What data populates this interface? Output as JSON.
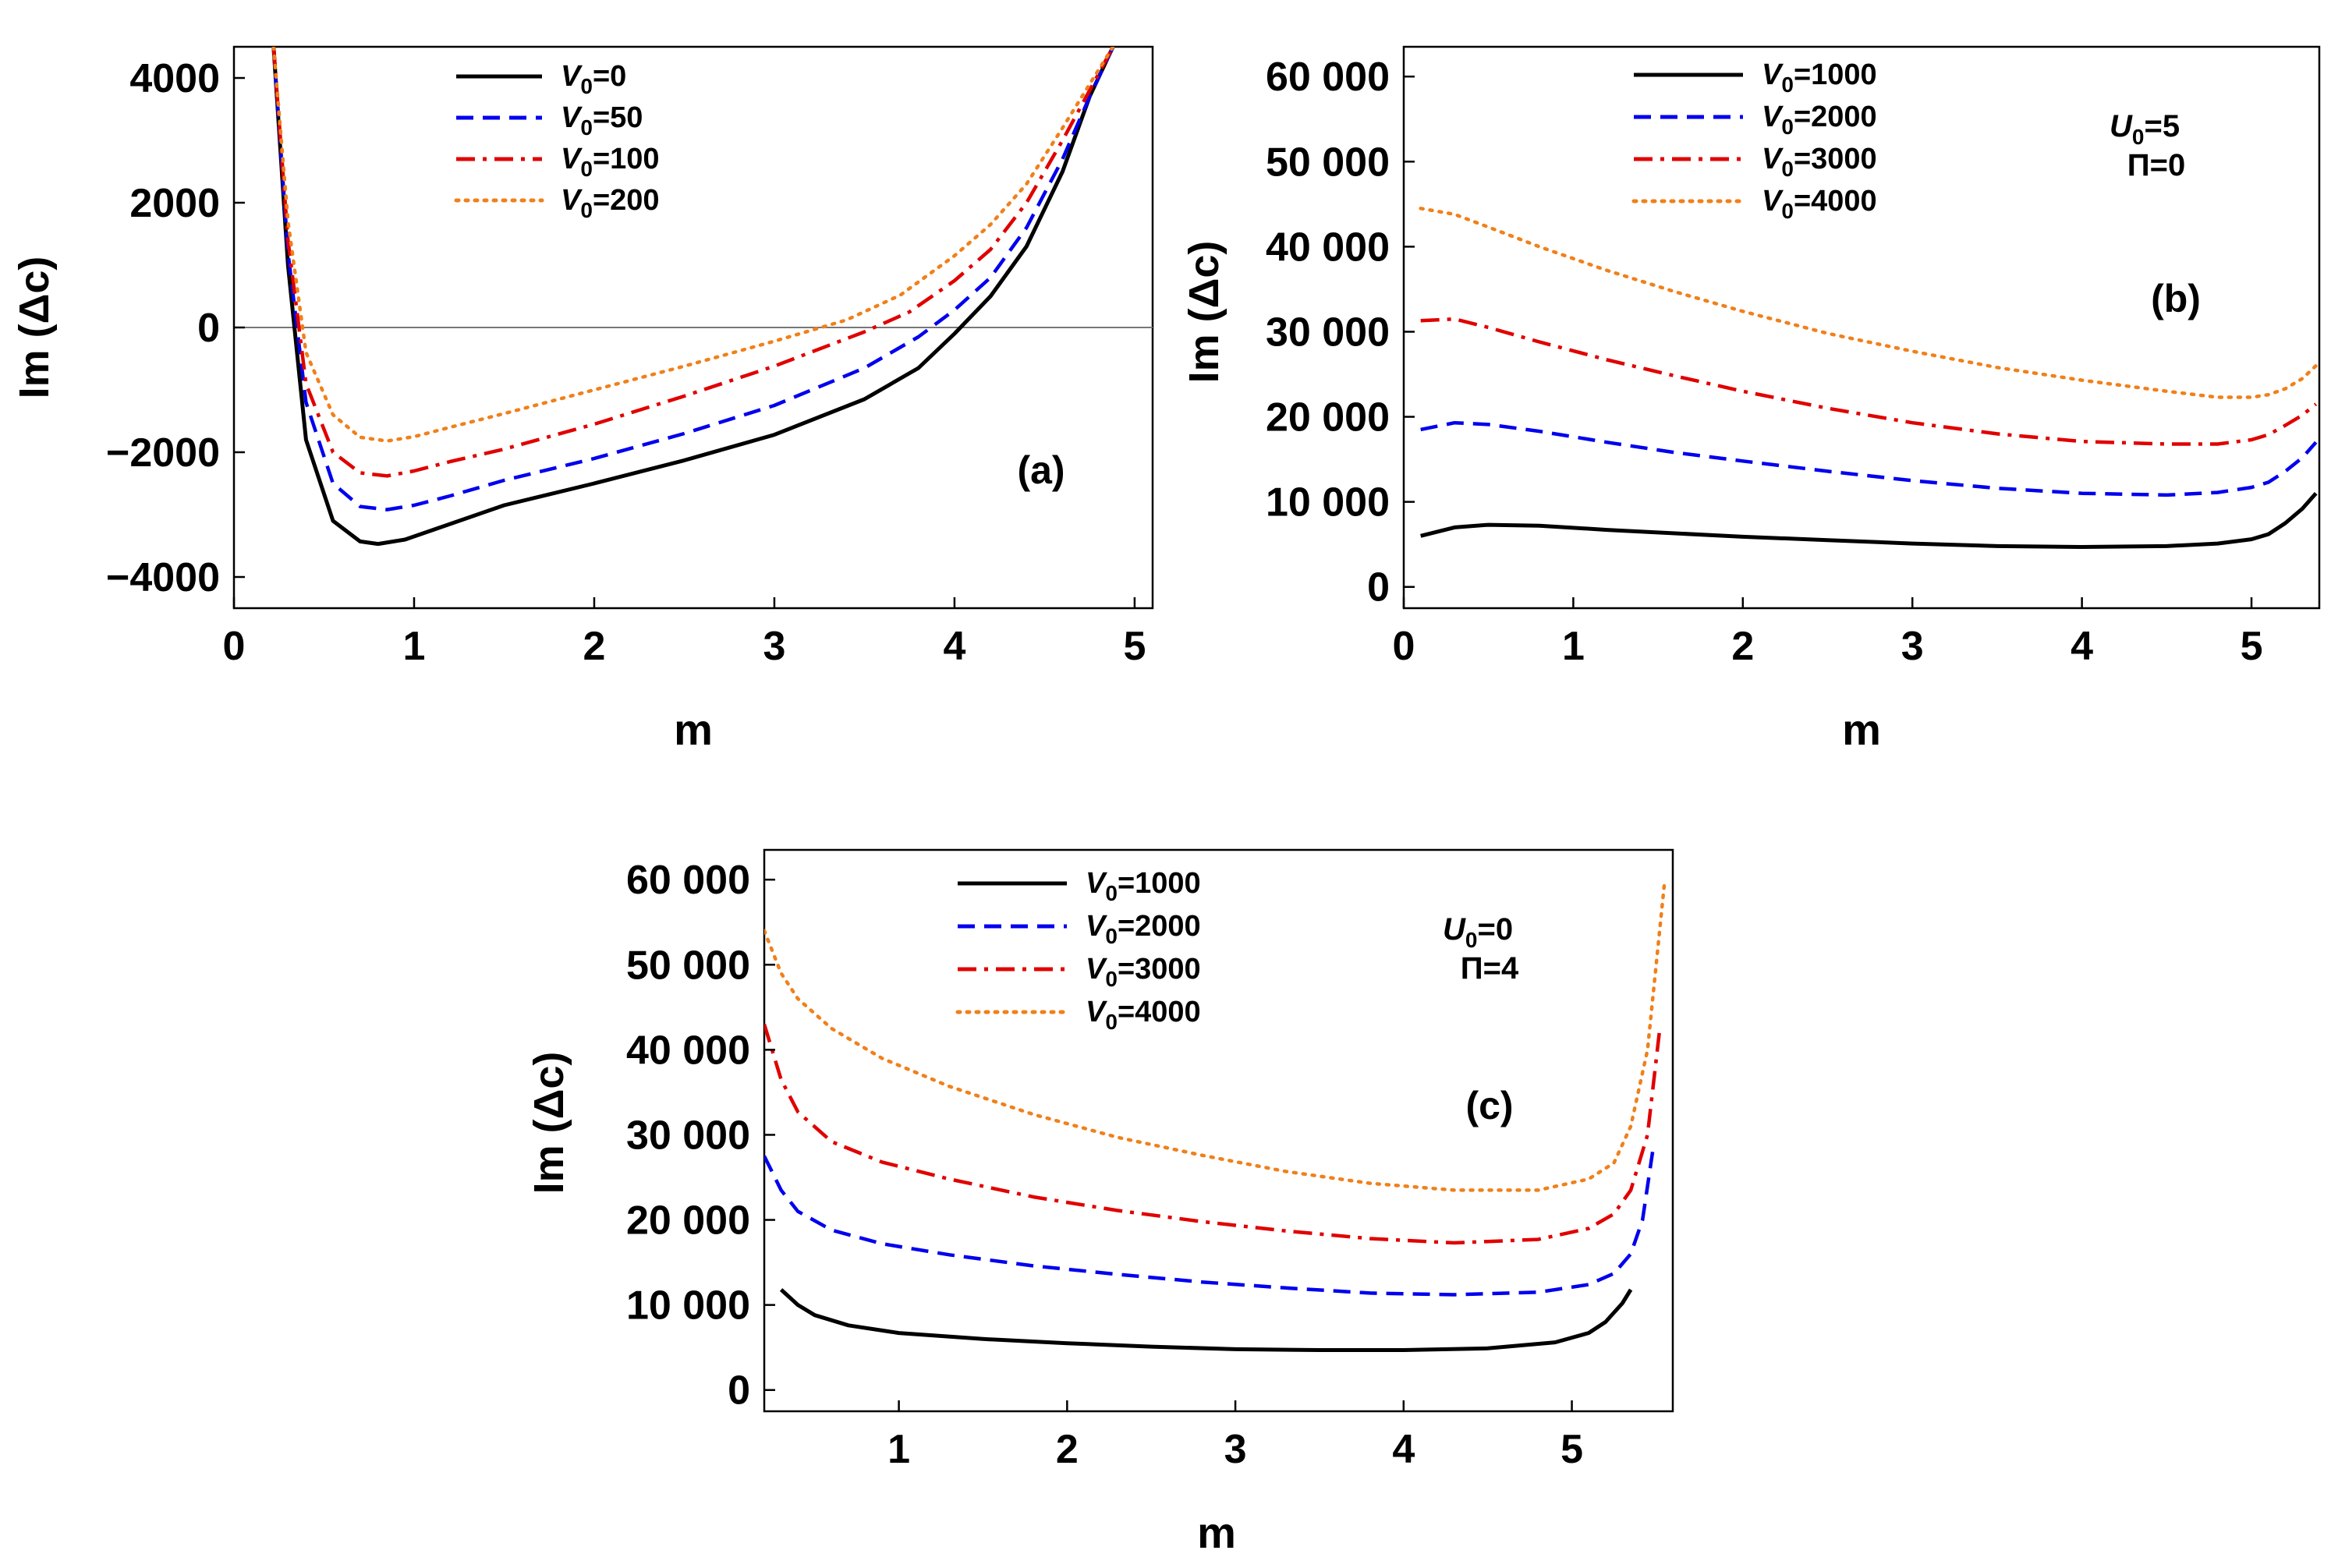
{
  "colors": {
    "s0": "#000000",
    "s1": "#0000ee",
    "s2": "#e00000",
    "s3": "#f0801a"
  },
  "chart_data": [
    {
      "id": "a",
      "type": "line",
      "panel_label": "(a)",
      "xlabel": "m",
      "ylabel": "Im (Δc)",
      "xlim": [
        0,
        5.1
      ],
      "ylim": [
        -4500,
        4500
      ],
      "xticks": [
        0,
        1,
        2,
        3,
        4,
        5
      ],
      "xtick_labels": [
        "0",
        "1",
        "2",
        "3",
        "4",
        "5"
      ],
      "yticks": [
        -4000,
        -2000,
        0,
        2000,
        4000
      ],
      "ytick_labels": [
        "−4000",
        "−2000",
        "0",
        "2000",
        "4000"
      ],
      "zero_line": true,
      "legend_position": "top-center",
      "series": [
        {
          "name": "V0=0",
          "v0": "0",
          "style": "solid",
          "x": [
            0.22,
            0.3,
            0.4,
            0.55,
            0.7,
            0.8,
            0.95,
            1.2,
            1.5,
            2.0,
            2.5,
            3.0,
            3.5,
            3.8,
            4.0,
            4.2,
            4.4,
            4.6,
            4.75,
            4.88
          ],
          "y": [
            4500,
            1000,
            -1800,
            -3100,
            -3430,
            -3470,
            -3400,
            -3150,
            -2850,
            -2500,
            -2130,
            -1720,
            -1150,
            -650,
            -100,
            500,
            1300,
            2500,
            3700,
            4500
          ]
        },
        {
          "name": "V0=50",
          "v0": "50",
          "style": "dashed",
          "x": [
            0.22,
            0.3,
            0.4,
            0.55,
            0.7,
            0.85,
            1.0,
            1.2,
            1.5,
            2.0,
            2.5,
            3.0,
            3.5,
            3.8,
            4.0,
            4.2,
            4.4,
            4.6,
            4.75,
            4.88
          ],
          "y": [
            4500,
            1200,
            -1200,
            -2500,
            -2870,
            -2920,
            -2850,
            -2700,
            -2450,
            -2100,
            -1700,
            -1250,
            -650,
            -150,
            280,
            800,
            1600,
            2700,
            3700,
            4500
          ]
        },
        {
          "name": "V0=100",
          "v0": "100",
          "style": "dashdot",
          "x": [
            0.22,
            0.3,
            0.4,
            0.55,
            0.7,
            0.85,
            1.0,
            1.2,
            1.5,
            2.0,
            2.5,
            3.0,
            3.5,
            3.75,
            4.0,
            4.2,
            4.4,
            4.6,
            4.75,
            4.88
          ],
          "y": [
            4500,
            1400,
            -900,
            -2000,
            -2330,
            -2380,
            -2300,
            -2150,
            -1950,
            -1550,
            -1100,
            -620,
            -70,
            250,
            750,
            1250,
            2000,
            3000,
            3800,
            4500
          ]
        },
        {
          "name": "V0=200",
          "v0": "200",
          "style": "dotted",
          "x": [
            0.22,
            0.3,
            0.4,
            0.55,
            0.7,
            0.85,
            1.0,
            1.2,
            1.5,
            2.0,
            2.5,
            3.0,
            3.4,
            3.7,
            4.0,
            4.2,
            4.4,
            4.6,
            4.75,
            4.88
          ],
          "y": [
            4500,
            1700,
            -400,
            -1400,
            -1760,
            -1820,
            -1750,
            -1600,
            -1380,
            -1000,
            -620,
            -220,
            120,
            520,
            1150,
            1650,
            2300,
            3200,
            3900,
            4500
          ]
        }
      ]
    },
    {
      "id": "b",
      "type": "line",
      "panel_label": "(b)",
      "xlabel": "m",
      "ylabel": "Im (Δc)",
      "xlim": [
        0,
        5.4
      ],
      "ylim": [
        -2500,
        63500
      ],
      "xticks": [
        0,
        1,
        2,
        3,
        4,
        5
      ],
      "xtick_labels": [
        "0",
        "1",
        "2",
        "3",
        "4",
        "5"
      ],
      "yticks": [
        0,
        10000,
        20000,
        30000,
        40000,
        50000,
        60000
      ],
      "ytick_labels": [
        "0",
        "10 000",
        "20 000",
        "30 000",
        "40 000",
        "50 000",
        "60 000"
      ],
      "zero_line": false,
      "legend_position": "top-left",
      "annotations": [
        "U0=5",
        "Π=0"
      ],
      "series": [
        {
          "name": "V0=1000",
          "v0": "1000",
          "style": "solid",
          "x": [
            0.1,
            0.3,
            0.5,
            0.8,
            1.2,
            1.6,
            2.0,
            2.5,
            3.0,
            3.5,
            4.0,
            4.5,
            4.8,
            5.0,
            5.1,
            5.2,
            5.3,
            5.38
          ],
          "y": [
            6000,
            7000,
            7300,
            7200,
            6700,
            6300,
            5900,
            5500,
            5100,
            4800,
            4700,
            4800,
            5100,
            5600,
            6200,
            7500,
            9200,
            11000
          ]
        },
        {
          "name": "V0=2000",
          "v0": "2000",
          "style": "dashed",
          "x": [
            0.1,
            0.3,
            0.5,
            0.8,
            1.2,
            1.6,
            2.0,
            2.5,
            3.0,
            3.5,
            4.0,
            4.5,
            4.8,
            5.0,
            5.1,
            5.2,
            5.3,
            5.38
          ],
          "y": [
            18500,
            19300,
            19100,
            18300,
            17000,
            15800,
            14800,
            13600,
            12500,
            11600,
            11000,
            10800,
            11100,
            11700,
            12300,
            13600,
            15200,
            17000
          ]
        },
        {
          "name": "V0=3000",
          "v0": "3000",
          "style": "dashdot",
          "x": [
            0.1,
            0.3,
            0.5,
            0.8,
            1.2,
            1.6,
            2.0,
            2.5,
            3.0,
            3.5,
            4.0,
            4.5,
            4.8,
            5.0,
            5.1,
            5.2,
            5.3,
            5.38
          ],
          "y": [
            31300,
            31500,
            30500,
            28800,
            26700,
            24800,
            23000,
            21000,
            19300,
            18000,
            17100,
            16800,
            16800,
            17300,
            17900,
            19000,
            20200,
            21500
          ]
        },
        {
          "name": "V0=4000",
          "v0": "4000",
          "style": "dotted",
          "x": [
            0.1,
            0.3,
            0.5,
            0.8,
            1.2,
            1.6,
            2.0,
            2.5,
            3.0,
            3.5,
            4.0,
            4.5,
            4.8,
            5.0,
            5.1,
            5.2,
            5.3,
            5.38
          ],
          "y": [
            44500,
            43800,
            42300,
            40000,
            37200,
            34700,
            32400,
            29800,
            27700,
            25800,
            24300,
            23000,
            22300,
            22300,
            22600,
            23300,
            24500,
            26000
          ]
        }
      ]
    },
    {
      "id": "c",
      "type": "line",
      "panel_label": "(c)",
      "xlabel": "m",
      "ylabel": "Im (Δc)",
      "xlim": [
        0.2,
        5.6
      ],
      "ylim": [
        -2500,
        63500
      ],
      "xticks": [
        1,
        2,
        3,
        4,
        5
      ],
      "xtick_labels": [
        "1",
        "2",
        "3",
        "4",
        "5"
      ],
      "yticks": [
        0,
        10000,
        20000,
        30000,
        40000,
        50000,
        60000
      ],
      "ytick_labels": [
        "0",
        "10 000",
        "20 000",
        "30 000",
        "40 000",
        "50 000",
        "60 000"
      ],
      "zero_line": false,
      "legend_position": "top-left",
      "annotations": [
        "U0=0",
        "Π=4"
      ],
      "series": [
        {
          "name": "V0=1000",
          "v0": "1000",
          "style": "solid",
          "x": [
            0.3,
            0.4,
            0.5,
            0.7,
            1.0,
            1.5,
            2.0,
            2.5,
            3.0,
            3.5,
            4.0,
            4.5,
            4.9,
            5.1,
            5.2,
            5.3,
            5.35
          ],
          "y": [
            11800,
            10000,
            8800,
            7600,
            6700,
            6000,
            5500,
            5100,
            4800,
            4700,
            4700,
            4900,
            5600,
            6700,
            8000,
            10200,
            11800
          ]
        },
        {
          "name": "V0=2000",
          "v0": "2000",
          "style": "dashed",
          "x": [
            0.2,
            0.3,
            0.4,
            0.6,
            0.9,
            1.3,
            1.8,
            2.3,
            2.8,
            3.3,
            3.8,
            4.3,
            4.8,
            5.1,
            5.25,
            5.35,
            5.42,
            5.48
          ],
          "y": [
            27500,
            23500,
            21000,
            18800,
            17200,
            15900,
            14600,
            13600,
            12700,
            12000,
            11400,
            11200,
            11500,
            12400,
            13700,
            16000,
            20000,
            28000
          ]
        },
        {
          "name": "V0=3000",
          "v0": "3000",
          "style": "dashdot",
          "x": [
            0.2,
            0.3,
            0.4,
            0.6,
            0.9,
            1.3,
            1.8,
            2.3,
            2.8,
            3.3,
            3.8,
            4.3,
            4.8,
            5.1,
            5.25,
            5.35,
            5.45,
            5.52
          ],
          "y": [
            43000,
            36500,
            32700,
            29200,
            26800,
            24800,
            22700,
            21100,
            19800,
            18700,
            17800,
            17300,
            17700,
            19000,
            20700,
            23500,
            30000,
            42000
          ]
        },
        {
          "name": "V0=4000",
          "v0": "4000",
          "style": "dotted",
          "x": [
            0.2,
            0.3,
            0.4,
            0.6,
            0.9,
            1.3,
            1.8,
            2.3,
            2.8,
            3.3,
            3.8,
            4.3,
            4.8,
            5.1,
            5.25,
            5.35,
            5.45,
            5.55
          ],
          "y": [
            54000,
            49000,
            46000,
            42500,
            39000,
            35700,
            32400,
            29700,
            27600,
            25700,
            24300,
            23500,
            23500,
            24800,
            26700,
            31000,
            40000,
            59500
          ]
        }
      ]
    }
  ]
}
